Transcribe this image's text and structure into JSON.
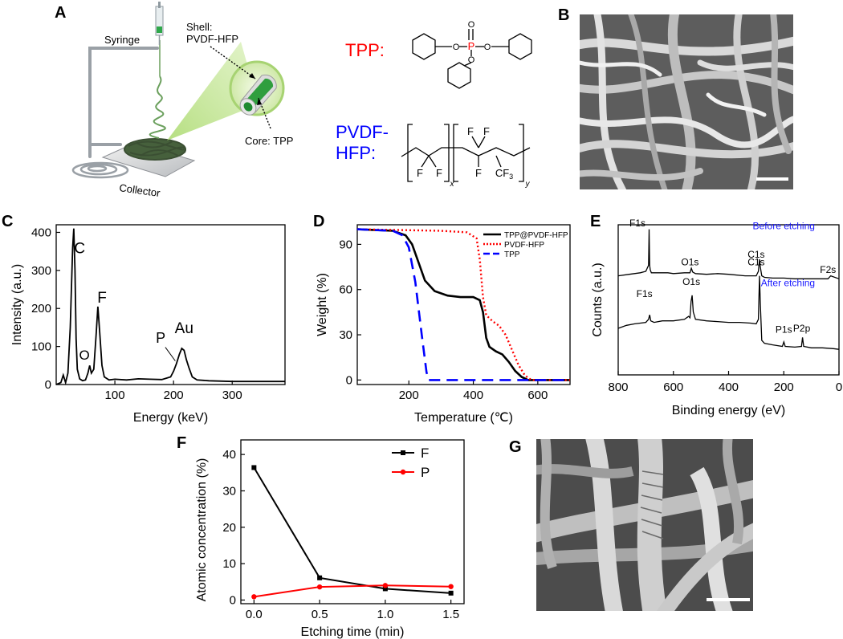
{
  "panel_letters": {
    "a": "A",
    "b": "B",
    "c": "C",
    "d": "D",
    "e": "E",
    "f": "F",
    "g": "G"
  },
  "schematic": {
    "syringe_label": "Syringe",
    "shell_label_1": "Shell:",
    "shell_label_2": "PVDF-HFP",
    "core_label": "Core: TPP",
    "collector_label": "Collector",
    "tpp_label": "TPP:",
    "pvdf_label_1": "PVDF-",
    "pvdf_label_2": "HFP:",
    "tpp_atoms": {
      "p": "P",
      "o_top": "O",
      "o_left": "O",
      "o_right": "O",
      "o_bottom": "O"
    },
    "pvdf_atoms": {
      "f1": "F",
      "f2": "F",
      "f3": "F",
      "f4": "F",
      "f5": "F",
      "cf3": "CF",
      "cf3_sub": "3",
      "x": "x",
      "y": "y"
    },
    "colors": {
      "tpp": "#ff0000",
      "pvdf": "#0000ff",
      "phosphorus": "#ff0000",
      "fiber_green": "#2e8b3a"
    }
  },
  "chart_data": [
    {
      "panel": "C",
      "type": "line",
      "xlabel": "Energy (keV)",
      "ylabel": "Intensity (a.u.)",
      "xlim": [
        0,
        390
      ],
      "ylim": [
        0,
        420
      ],
      "xticks": [
        100,
        200,
        300
      ],
      "yticks": [
        0,
        100,
        200,
        300,
        400
      ],
      "annotations": [
        "C",
        "O",
        "F",
        "P",
        "Au"
      ],
      "series": [
        {
          "x": [
            0,
            8,
            12,
            16,
            20,
            24,
            28,
            30,
            32,
            34,
            36,
            40,
            45,
            50,
            54,
            57,
            60,
            64,
            68,
            71,
            74,
            78,
            82,
            90,
            100,
            120,
            140,
            160,
            180,
            195,
            200,
            205,
            210,
            214,
            218,
            222,
            226,
            232,
            240,
            260,
            300,
            340,
            390
          ],
          "y": [
            0,
            5,
            25,
            5,
            30,
            150,
            360,
            410,
            300,
            120,
            40,
            15,
            10,
            12,
            30,
            50,
            30,
            40,
            130,
            205,
            140,
            50,
            20,
            12,
            14,
            12,
            15,
            14,
            13,
            20,
            35,
            55,
            80,
            95,
            90,
            65,
            45,
            20,
            12,
            10,
            8,
            8,
            8
          ]
        }
      ]
    },
    {
      "panel": "D",
      "type": "line",
      "xlabel": "Temperature (℃)",
      "ylabel": "Weight (%)",
      "xlim": [
        40,
        700
      ],
      "ylim": [
        -3,
        103
      ],
      "xticks": [
        200,
        400,
        600
      ],
      "yticks": [
        0,
        30,
        60,
        90
      ],
      "legend_position": "top-right",
      "series": [
        {
          "name": "TPP@PVDF-HFP",
          "color": "#000000",
          "x": [
            40,
            150,
            190,
            210,
            230,
            250,
            280,
            320,
            360,
            400,
            420,
            430,
            440,
            450,
            470,
            490,
            510,
            530,
            550,
            570,
            580,
            700
          ],
          "y": [
            100,
            99,
            96,
            90,
            78,
            66,
            59,
            56,
            55,
            55,
            53,
            45,
            28,
            22,
            19,
            17,
            12,
            6,
            2,
            0,
            0,
            0
          ]
        },
        {
          "name": "PVDF-HFP",
          "color": "#ff0000",
          "x": [
            40,
            300,
            380,
            410,
            420,
            430,
            440,
            460,
            480,
            500,
            520,
            540,
            560,
            580,
            700
          ],
          "y": [
            100,
            99,
            98,
            94,
            80,
            55,
            43,
            39,
            36,
            30,
            20,
            10,
            3,
            0,
            0
          ]
        },
        {
          "name": "TPP",
          "color": "#0000ff",
          "x": [
            40,
            150,
            180,
            200,
            220,
            240,
            255,
            262,
            700
          ],
          "y": [
            100,
            99,
            96,
            88,
            65,
            30,
            5,
            0,
            0
          ]
        }
      ]
    },
    {
      "panel": "E",
      "type": "line",
      "xlabel": "Binding energy (eV)",
      "ylabel": "Counts (a.u.)",
      "xlim": [
        800,
        0
      ],
      "ylim": [
        0,
        10
      ],
      "xticks": [
        800,
        600,
        400,
        200,
        0
      ],
      "annotations": [
        "F1s",
        "O1s",
        "C1s",
        "F2s",
        "Before etching",
        "F1s",
        "O1s",
        "C1s",
        "P1s",
        "P2p",
        "After etching"
      ],
      "series": [
        {
          "name": "Before etching",
          "x": [
            800,
            760,
            720,
            700,
            690,
            688,
            686,
            684,
            680,
            660,
            620,
            600,
            560,
            540,
            535,
            530,
            520,
            480,
            440,
            400,
            340,
            300,
            292,
            288,
            285,
            280,
            270,
            240,
            200,
            160,
            120,
            40,
            30,
            0
          ],
          "y": [
            6.6,
            6.7,
            6.8,
            6.9,
            7.3,
            9.7,
            7.3,
            7.0,
            6.8,
            6.8,
            6.8,
            6.75,
            6.8,
            6.8,
            7.1,
            6.85,
            6.75,
            6.7,
            6.75,
            6.7,
            6.6,
            6.6,
            6.9,
            7.7,
            7.2,
            6.6,
            6.5,
            6.45,
            6.45,
            6.4,
            6.4,
            6.4,
            6.6,
            6.4
          ]
        },
        {
          "name": "After etching",
          "x": [
            800,
            770,
            740,
            700,
            690,
            686,
            682,
            670,
            640,
            600,
            560,
            545,
            540,
            536,
            532,
            528,
            520,
            480,
            440,
            400,
            360,
            320,
            300,
            292,
            288,
            285,
            280,
            270,
            240,
            205,
            200,
            195,
            160,
            136,
            132,
            128,
            100,
            60,
            20,
            0
          ],
          "y": [
            3.1,
            3.3,
            3.4,
            3.5,
            3.7,
            4.0,
            3.6,
            3.5,
            3.6,
            3.6,
            3.7,
            3.9,
            3.8,
            4.9,
            5.3,
            4.2,
            3.7,
            3.6,
            3.55,
            3.5,
            3.5,
            3.45,
            3.4,
            3.7,
            6.6,
            4.8,
            2.3,
            2.1,
            2.0,
            1.9,
            2.2,
            1.9,
            1.85,
            1.9,
            2.5,
            1.9,
            1.8,
            1.8,
            1.75,
            1.7
          ]
        }
      ]
    },
    {
      "panel": "F",
      "type": "line",
      "xlabel": "Etching time (min)",
      "ylabel": "Atomic concentration (%)",
      "xlim": [
        -0.1,
        1.6
      ],
      "ylim": [
        -1,
        44
      ],
      "xticks": [
        0.0,
        0.5,
        1.0,
        1.5
      ],
      "yticks": [
        0,
        10,
        20,
        30,
        40
      ],
      "legend_position": "top-right",
      "series": [
        {
          "name": "F",
          "color": "#000000",
          "x": [
            0.0,
            0.5,
            1.0,
            1.5
          ],
          "y": [
            36.4,
            6.1,
            3.1,
            1.9
          ]
        },
        {
          "name": "P",
          "color": "#ff0000",
          "x": [
            0.0,
            0.5,
            1.0,
            1.5
          ],
          "y": [
            0.9,
            3.6,
            4.0,
            3.7
          ]
        }
      ]
    }
  ]
}
